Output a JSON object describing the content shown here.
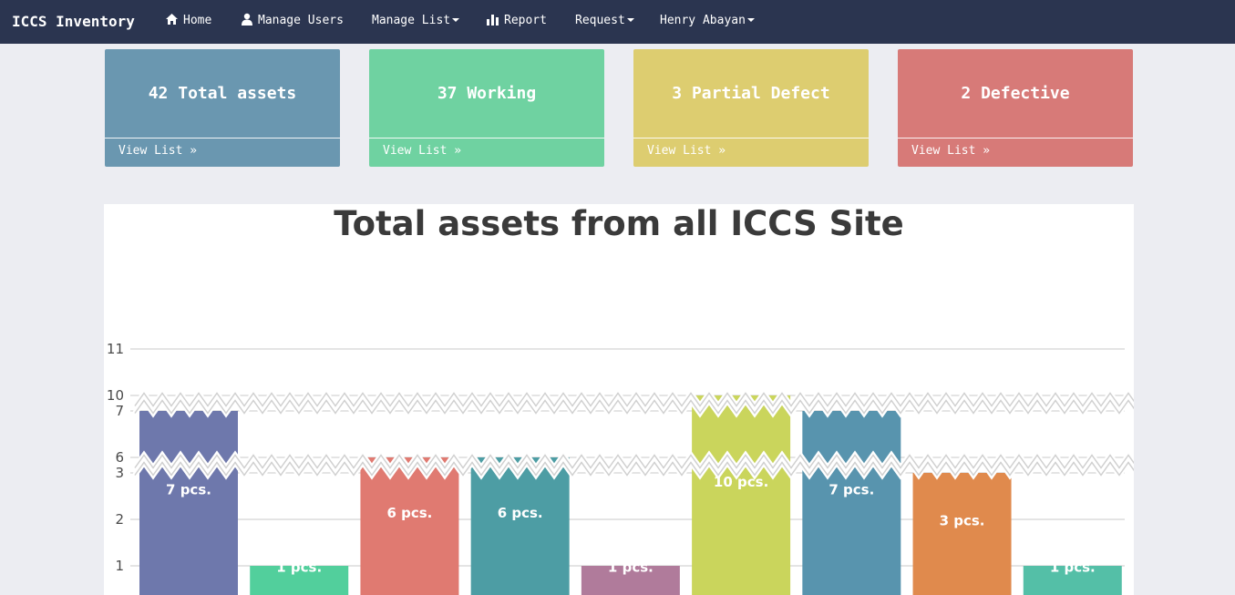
{
  "nav": {
    "brand": "ICCS Inventory",
    "items": [
      {
        "label": "Home",
        "icon": "home-icon",
        "dropdown": false
      },
      {
        "label": "Manage Users",
        "icon": "user-icon",
        "dropdown": false
      },
      {
        "label": "Manage List",
        "icon": "",
        "dropdown": true
      },
      {
        "label": "Report",
        "icon": "bar-chart-icon",
        "dropdown": false
      },
      {
        "label": "Request",
        "icon": "",
        "dropdown": true
      },
      {
        "label": "Henry Abayan",
        "icon": "",
        "dropdown": true
      }
    ]
  },
  "cards": [
    {
      "title": "42 Total assets",
      "link": "View List »",
      "color": "#6a97b0"
    },
    {
      "title": "37 Working",
      "link": "View List »",
      "color": "#6fd2a1"
    },
    {
      "title": "3 Partial Defect",
      "link": "View List »",
      "color": "#ddcd70"
    },
    {
      "title": "2 Defective",
      "link": "View List »",
      "color": "#d77a78"
    }
  ],
  "chart_data": {
    "type": "bar",
    "title": "Total assets from all ICCS Site",
    "xlabel": "",
    "ylabel": "",
    "axis_breaks": [
      [
        3,
        6
      ],
      [
        7,
        10
      ]
    ],
    "yticks": [
      1,
      2,
      3,
      6,
      7,
      10,
      11
    ],
    "ylim": [
      0,
      11
    ],
    "grid": true,
    "values": [
      7,
      1,
      6,
      6,
      1,
      10,
      7,
      3,
      1
    ],
    "data_labels": [
      "7 pcs.",
      "1 pcs.",
      "6 pcs.",
      "6 pcs.",
      "1 pcs.",
      "10 pcs.",
      "7 pcs.",
      "3 pcs.",
      "1 pcs."
    ],
    "colors": [
      "#6e78ac",
      "#52cf9c",
      "#e07a71",
      "#4d9da4",
      "#b07b9b",
      "#cad55c",
      "#5894ae",
      "#e08a4d",
      "#54bfa7"
    ]
  }
}
